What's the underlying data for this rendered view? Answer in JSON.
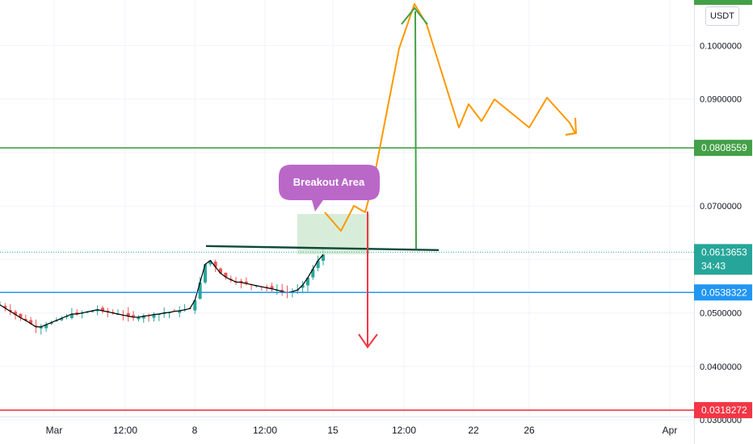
{
  "chart_data": {
    "type": "candlestick",
    "unit": "USDT",
    "ylim": [
      0.0255,
      0.1085
    ],
    "ytick_labels": [
      "0.1000000",
      "0.0900000",
      "0.0700000",
      "0.0500000",
      "0.0400000",
      "0.0300000"
    ],
    "ytick_values": [
      0.1,
      0.09,
      0.07,
      0.05,
      0.04,
      0.03
    ],
    "xtick_labels": [
      "Mar",
      "12:00",
      "8",
      "12:00",
      "15",
      "12:00",
      "22",
      "26",
      "Apr"
    ],
    "current_price": {
      "value": 0.0613653,
      "label": "0.0613653",
      "countdown": "34:43",
      "color": "#26a69a"
    },
    "levels": [
      {
        "name": "target",
        "value": 0.0808559,
        "label": "0.0808559",
        "color": "#43a047"
      },
      {
        "name": "support",
        "value": 0.0538322,
        "label": "0.0538322",
        "color": "#2196f3"
      },
      {
        "name": "downside",
        "value": 0.0318272,
        "label": "0.0318272",
        "color": "#f23645"
      }
    ],
    "top_level": {
      "value": 0.1074965,
      "color": "#43a047"
    },
    "resistance_line": {
      "value": 0.0622,
      "color": "#0d4a3a"
    },
    "annotation": {
      "text": "Breakout Area",
      "color": "#ba68c8"
    },
    "projection_color": "#ff9800",
    "price_series": [
      0.0515,
      0.0509,
      0.0503,
      0.0497,
      0.0491,
      0.0486,
      0.048,
      0.0474,
      0.0474,
      0.0478,
      0.0482,
      0.0486,
      0.049,
      0.0494,
      0.0498,
      0.0498,
      0.05,
      0.0502,
      0.0504,
      0.0506,
      0.0504,
      0.0502,
      0.05,
      0.0498,
      0.0496,
      0.0494,
      0.0492,
      0.0492,
      0.0494,
      0.0495,
      0.0497,
      0.0498,
      0.05,
      0.0501,
      0.0503,
      0.0504,
      0.0506,
      0.0508,
      0.0524,
      0.0557,
      0.0591,
      0.0598,
      0.0586,
      0.0574,
      0.0567,
      0.0562,
      0.0558,
      0.0557,
      0.0555,
      0.0553,
      0.0551,
      0.0549,
      0.0547,
      0.0545,
      0.0543,
      0.054,
      0.0538,
      0.054,
      0.0543,
      0.0552,
      0.0566,
      0.0582,
      0.0598,
      0.0609
    ]
  }
}
